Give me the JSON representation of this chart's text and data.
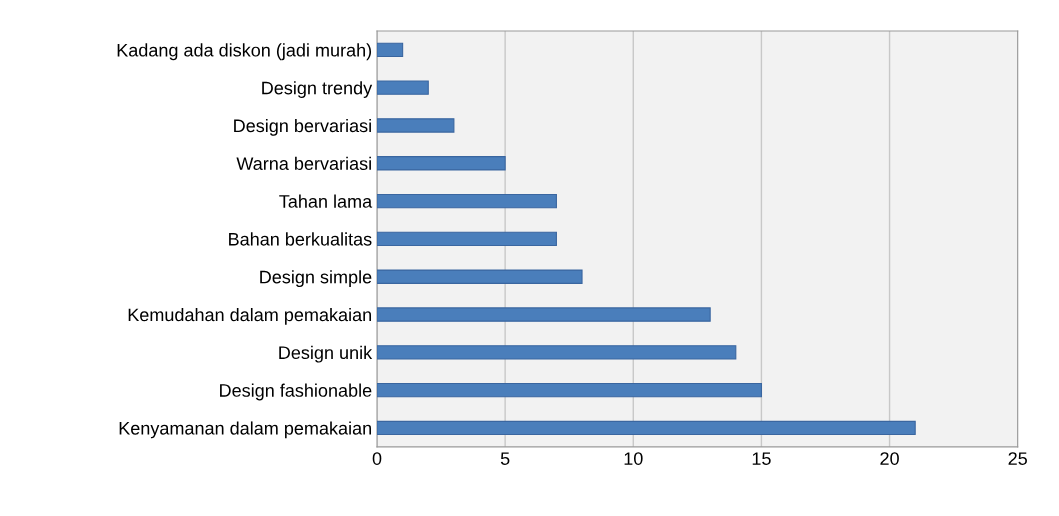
{
  "chart_data": {
    "type": "bar",
    "orientation": "horizontal",
    "categories": [
      "Kadang ada diskon (jadi murah)",
      "Design trendy",
      "Design bervariasi",
      "Warna bervariasi",
      "Tahan lama",
      "Bahan berkualitas",
      "Design simple",
      "Kemudahan dalam pemakaian",
      "Design unik",
      "Design fashionable",
      "Kenyamanan dalam pemakaian"
    ],
    "values": [
      1,
      2,
      3,
      5,
      7,
      7,
      8,
      13,
      14,
      15,
      21
    ],
    "color": "#4a7ebb",
    "xlim": [
      0,
      25
    ],
    "xticks": [
      0,
      5,
      10,
      15,
      20,
      25
    ],
    "grid": "x"
  }
}
